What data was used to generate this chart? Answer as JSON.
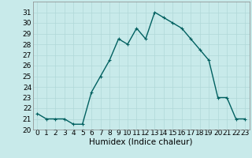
{
  "x": [
    0,
    1,
    2,
    3,
    4,
    5,
    6,
    7,
    8,
    9,
    10,
    11,
    12,
    13,
    14,
    15,
    16,
    17,
    18,
    19,
    20,
    21,
    22,
    23
  ],
  "y": [
    21.5,
    21.0,
    21.0,
    21.0,
    20.5,
    20.5,
    23.5,
    25.0,
    26.5,
    28.5,
    28.0,
    29.5,
    28.5,
    31.0,
    30.5,
    30.0,
    29.5,
    28.5,
    27.5,
    26.5,
    23.0,
    23.0,
    21.0,
    21.0
  ],
  "line_color": "#006060",
  "marker_color": "#006060",
  "bg_color": "#c8eaea",
  "grid_color": "#b0d8d8",
  "xlabel": "Humidex (Indice chaleur)",
  "xlim": [
    -0.5,
    23.5
  ],
  "ylim": [
    20,
    32
  ],
  "yticks": [
    20,
    21,
    22,
    23,
    24,
    25,
    26,
    27,
    28,
    29,
    30,
    31
  ],
  "xticks": [
    0,
    1,
    2,
    3,
    4,
    5,
    6,
    7,
    8,
    9,
    10,
    11,
    12,
    13,
    14,
    15,
    16,
    17,
    18,
    19,
    20,
    21,
    22,
    23
  ],
  "xlabel_fontsize": 7.5,
  "tick_fontsize": 6.5,
  "line_width": 1.0,
  "marker_size": 2.5
}
